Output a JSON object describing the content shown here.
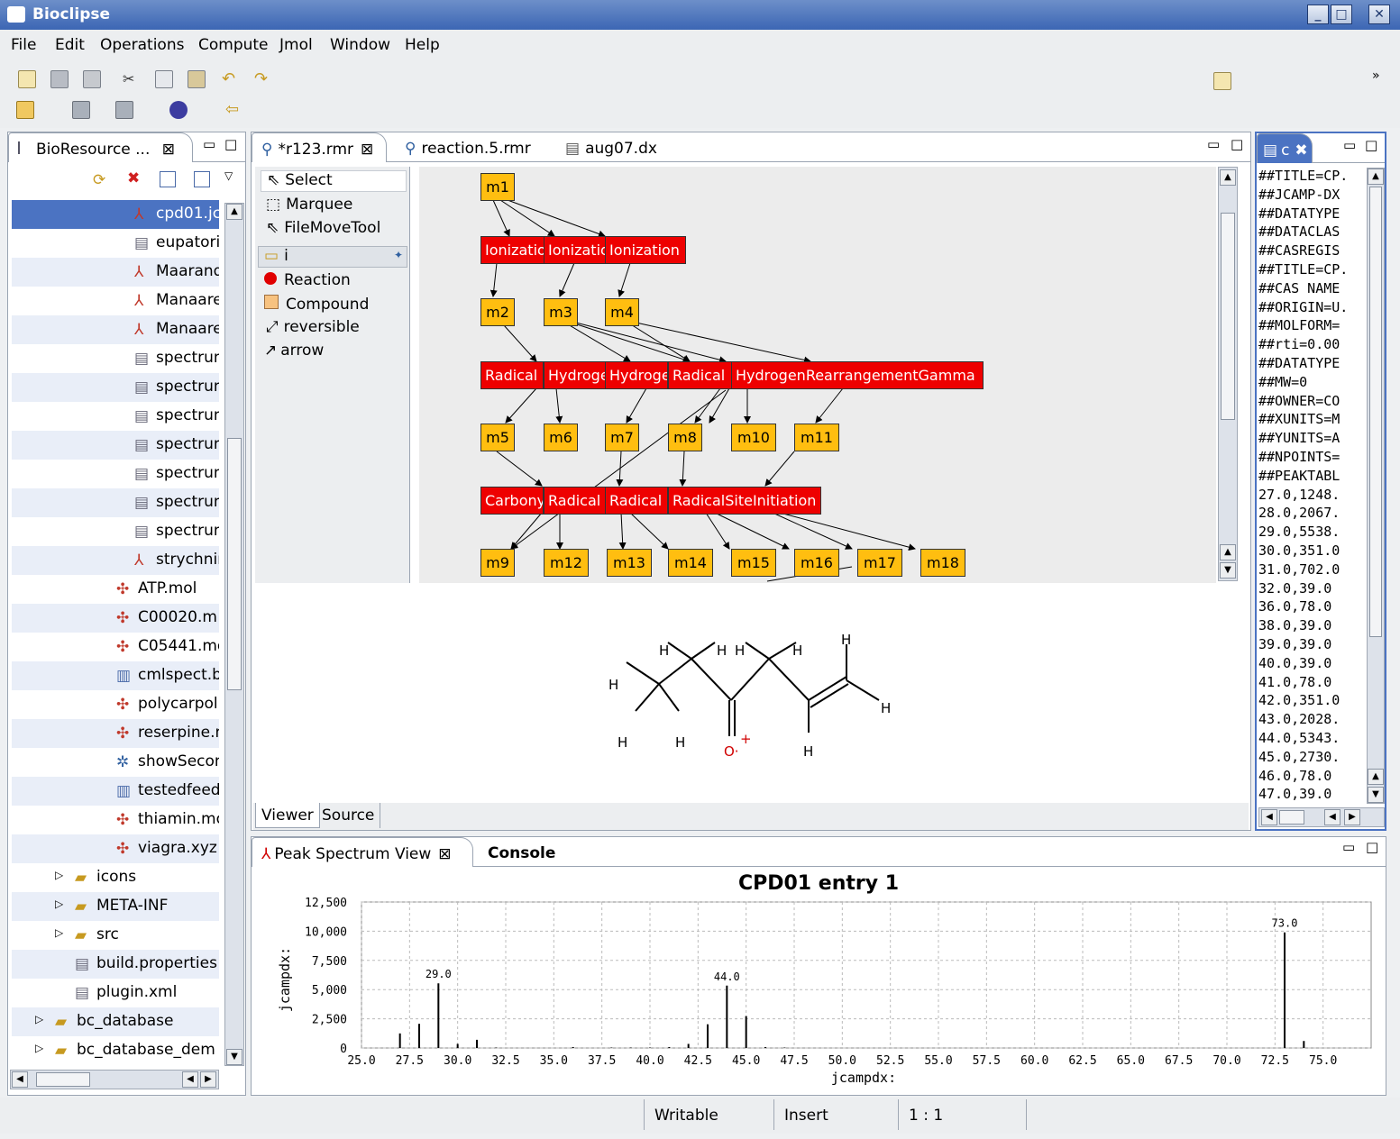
{
  "window": {
    "title": "Bioclipse"
  },
  "menu": [
    "File",
    "Edit",
    "Operations",
    "Compute",
    "Jmol",
    "Window",
    "Help"
  ],
  "navigator": {
    "tab_label": "BioResource ...",
    "items": [
      {
        "label": "cpd01.jc",
        "icon": "spectrum-check-icon",
        "indent": 0,
        "selected": true
      },
      {
        "label": "eupatori",
        "icon": "cml-icon",
        "indent": 0
      },
      {
        "label": "Maarand",
        "icon": "spectrum-chart-icon",
        "indent": 0
      },
      {
        "label": "Manaare",
        "icon": "spectrum-chart-icon",
        "indent": 0
      },
      {
        "label": "Manaare",
        "icon": "spectrum-chart-icon",
        "indent": 0
      },
      {
        "label": "spectrum",
        "icon": "cml-icon",
        "indent": 0
      },
      {
        "label": "spectrum",
        "icon": "cml-icon",
        "indent": 0
      },
      {
        "label": "spectrum",
        "icon": "cml-icon",
        "indent": 0
      },
      {
        "label": "spectrum",
        "icon": "cml-icon",
        "indent": 0
      },
      {
        "label": "spectrum",
        "icon": "cml-icon",
        "indent": 0
      },
      {
        "label": "spectrum",
        "icon": "cml-icon",
        "indent": 0
      },
      {
        "label": "spectrum",
        "icon": "cml-icon",
        "indent": 0
      },
      {
        "label": "strychnin",
        "icon": "peak-icon",
        "indent": 0
      },
      {
        "label": "ATP.mol",
        "icon": "molecule-icon",
        "indent": 1
      },
      {
        "label": "C00020.m",
        "icon": "molecule-icon",
        "indent": 1
      },
      {
        "label": "C05441.mo",
        "icon": "molecule-icon",
        "indent": 1
      },
      {
        "label": "cmlspect.bi",
        "icon": "binary-file-icon",
        "indent": 1
      },
      {
        "label": "polycarpol.r",
        "icon": "molecule-icon",
        "indent": 1
      },
      {
        "label": "reserpine.m",
        "icon": "molecule-icon",
        "indent": 1
      },
      {
        "label": "showSecon",
        "icon": "network-icon",
        "indent": 1
      },
      {
        "label": "testedfeeds",
        "icon": "binary-file-icon",
        "indent": 1
      },
      {
        "label": "thiamin.mol",
        "icon": "molecule-icon",
        "indent": 1
      },
      {
        "label": "viagra.xyz",
        "icon": "molecule-icon",
        "indent": 1
      },
      {
        "label": "icons",
        "icon": "folder-icon",
        "indent": 2,
        "expander": true
      },
      {
        "label": "META-INF",
        "icon": "folder-icon",
        "indent": 2,
        "expander": true
      },
      {
        "label": "src",
        "icon": "folder-icon",
        "indent": 2,
        "expander": true
      },
      {
        "label": "build.properties",
        "icon": "file-icon",
        "indent": 2
      },
      {
        "label": "plugin.xml",
        "icon": "xml-file-icon",
        "indent": 2
      },
      {
        "label": "bc_database",
        "icon": "project-icon",
        "indent": 3,
        "expander": true
      },
      {
        "label": "bc_database_dem",
        "icon": "project-icon",
        "indent": 3,
        "expander": true
      }
    ]
  },
  "editor": {
    "tabs": [
      {
        "label": "*r123.rmr",
        "active": true
      },
      {
        "label": "reaction.5.rmr",
        "active": false
      },
      {
        "label": "aug07.dx",
        "active": false
      }
    ],
    "palette": {
      "tools": [
        "Select",
        "Marquee",
        "FileMoveTool"
      ],
      "drawer": "i",
      "items": [
        "Reaction",
        "Compound",
        "reversible",
        "arrow"
      ]
    },
    "molecules": [
      "m1",
      "m2",
      "m3",
      "m4",
      "m5",
      "m6",
      "m7",
      "m8",
      "m10",
      "m11",
      "m9",
      "m12",
      "m13",
      "m14",
      "m15",
      "m16",
      "m17",
      "m18"
    ],
    "reactions_row1": [
      "Ionizatio",
      "Ionizatio",
      "Ionization"
    ],
    "reactions_row2": [
      "Radical",
      "Hydroge",
      "Hydroge",
      "Radical",
      "HydrogenRearrangementGamma"
    ],
    "reactions_row3": [
      "Carbony",
      "Radical",
      "Radical",
      "RadicalSiteInitiation"
    ],
    "structure_atoms": {
      "h": "H",
      "o": "O·",
      "charge": "+"
    },
    "bottom_tabs": [
      "Viewer",
      "Source"
    ]
  },
  "jcamp": {
    "tab_label": "c",
    "lines": [
      "##TITLE=CP.",
      "##JCAMP-DX",
      "##DATATYPE",
      "##DATACLAS",
      "##CASREGIS",
      "##TITLE=CP.",
      "##CAS NAME",
      "##ORIGIN=U.",
      "##MOLFORM=",
      "##rti=0.00",
      "##DATATYPE",
      "##MW=0",
      "##OWNER=CO",
      "##XUNITS=M",
      "##YUNITS=A",
      "##NPOINTS=",
      "##PEAKTABL",
      "27.0,1248.",
      "28.0,2067.",
      "29.0,5538.",
      "30.0,351.0",
      "31.0,702.0",
      "32.0,39.0",
      "36.0,78.0",
      "38.0,39.0",
      "39.0,39.0",
      "40.0,39.0",
      "41.0,78.0",
      "42.0,351.0",
      "43.0,2028.",
      "44.0,5343.",
      "45.0,2730.",
      "46.0,78.0",
      "47.0,39.0"
    ]
  },
  "spectrum": {
    "tabs": [
      "Peak Spectrum View",
      "Console"
    ]
  },
  "chart_data": {
    "type": "bar",
    "title": "CPD01 entry 1",
    "xlabel": "jcampdx:",
    "ylabel": "jcampdx:",
    "xlim": [
      25.0,
      77.5
    ],
    "ylim": [
      0,
      12500
    ],
    "xticks": [
      "25.0",
      "27.5",
      "30.0",
      "32.5",
      "35.0",
      "37.5",
      "40.0",
      "42.5",
      "45.0",
      "47.5",
      "50.0",
      "52.5",
      "55.0",
      "57.5",
      "60.0",
      "62.5",
      "65.0",
      "67.5",
      "70.0",
      "72.5",
      "75.0"
    ],
    "yticks": [
      "0",
      "2,500",
      "5,000",
      "7,500",
      "10,000",
      "12,500"
    ],
    "grid": true,
    "x": [
      27.0,
      28.0,
      29.0,
      30.0,
      31.0,
      32.0,
      36.0,
      38.0,
      39.0,
      40.0,
      41.0,
      42.0,
      43.0,
      44.0,
      45.0,
      46.0,
      47.0,
      73.0,
      74.0
    ],
    "values": [
      1248,
      2067,
      5538,
      351,
      702,
      39,
      78,
      39,
      39,
      39,
      78,
      351,
      2028,
      5343,
      2730,
      78,
      39,
      9900,
      600
    ],
    "peak_labels": [
      {
        "x": 29.0,
        "label": "29.0"
      },
      {
        "x": 44.0,
        "label": "44.0"
      },
      {
        "x": 73.0,
        "label": "73.0"
      }
    ]
  },
  "status": {
    "mode": "Writable",
    "insert": "Insert",
    "position": "1 : 1"
  }
}
